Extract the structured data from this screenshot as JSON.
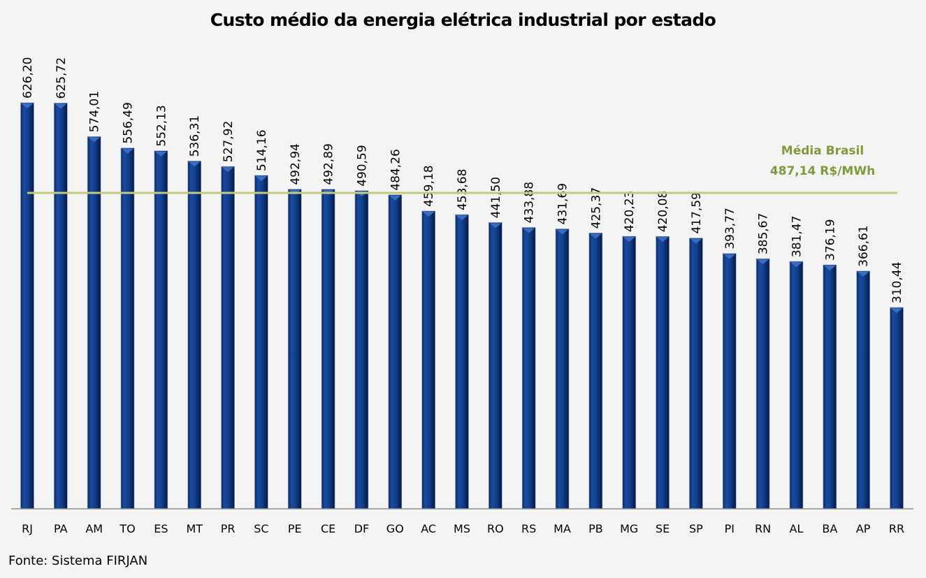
{
  "chart_data": {
    "type": "bar",
    "title": "Custo médio da energia elétrica industrial por estado",
    "xlabel": "",
    "ylabel": "",
    "ylim": [
      0,
      626.2
    ],
    "grid": false,
    "categories": [
      "RJ",
      "PA",
      "AM",
      "TO",
      "ES",
      "MT",
      "PR",
      "SC",
      "PE",
      "CE",
      "DF",
      "GO",
      "AC",
      "MS",
      "RO",
      "RS",
      "MA",
      "PB",
      "MG",
      "SE",
      "SP",
      "PI",
      "RN",
      "AL",
      "BA",
      "AP",
      "RR"
    ],
    "values": [
      626.2,
      625.72,
      574.01,
      556.49,
      552.13,
      536.31,
      527.92,
      514.16,
      492.94,
      492.89,
      490.59,
      484.26,
      459.18,
      453.68,
      441.5,
      433.88,
      431.69,
      425.37,
      420.23,
      420.08,
      417.59,
      393.77,
      385.67,
      381.47,
      376.19,
      366.61,
      310.44
    ],
    "value_labels": [
      "626,20",
      "625,72",
      "574,01",
      "556,49",
      "552,13",
      "536,31",
      "527,92",
      "514,16",
      "492,94",
      "492,89",
      "490,59",
      "484,26",
      "459,18",
      "453,68",
      "441,50",
      "433,88",
      "431,69",
      "425,37",
      "420,23",
      "420,08",
      "417,59",
      "393,77",
      "385,67",
      "381,47",
      "376,19",
      "366,61",
      "310,44"
    ],
    "reference_line": {
      "value": 487.14,
      "label_line1": "Média Brasil",
      "label_line2": "487,14 R$/MWh",
      "color": "#c3c97f",
      "label_color": "#7f9a3a"
    },
    "bar_color": "#0f3a82",
    "source": "Fonte: Sistema FIRJAN"
  }
}
